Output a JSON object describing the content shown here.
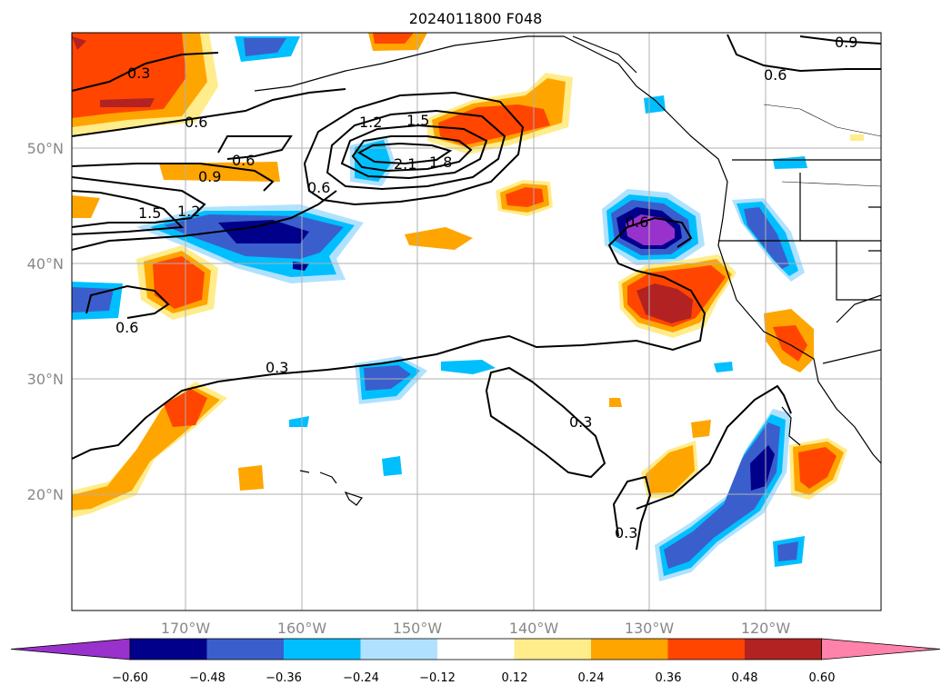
{
  "map": {
    "title": "2024011800 F048",
    "lat_labels": [
      "50°N",
      "40°N",
      "30°N",
      "20°N"
    ],
    "lon_labels": [
      "170°W",
      "160°W",
      "150°W",
      "140°W",
      "130°W",
      "120°W"
    ],
    "contour_labels": [
      "0.3",
      "0.6",
      "0.6",
      "0.9",
      "0.9",
      "0.6",
      "1.5",
      "1.2",
      "0.6",
      "1.2",
      "1.5",
      "2.1",
      "1.8",
      "0.6",
      "0.6",
      "0.3",
      "0.3",
      "0.3"
    ],
    "colorbar": {
      "ticks": [
        "−0.60",
        "−0.48",
        "−0.36",
        "−0.24",
        "−0.12",
        "0.12",
        "0.24",
        "0.36",
        "0.48",
        "0.60"
      ],
      "colors": [
        "#9932cc",
        "#00008b",
        "#3a5fcd",
        "#00bfff",
        "#b0e2ff",
        "#ffffff",
        "#ffec8b",
        "#ffa500",
        "#ff4500",
        "#b22222",
        "#ff82ab"
      ]
    }
  }
}
